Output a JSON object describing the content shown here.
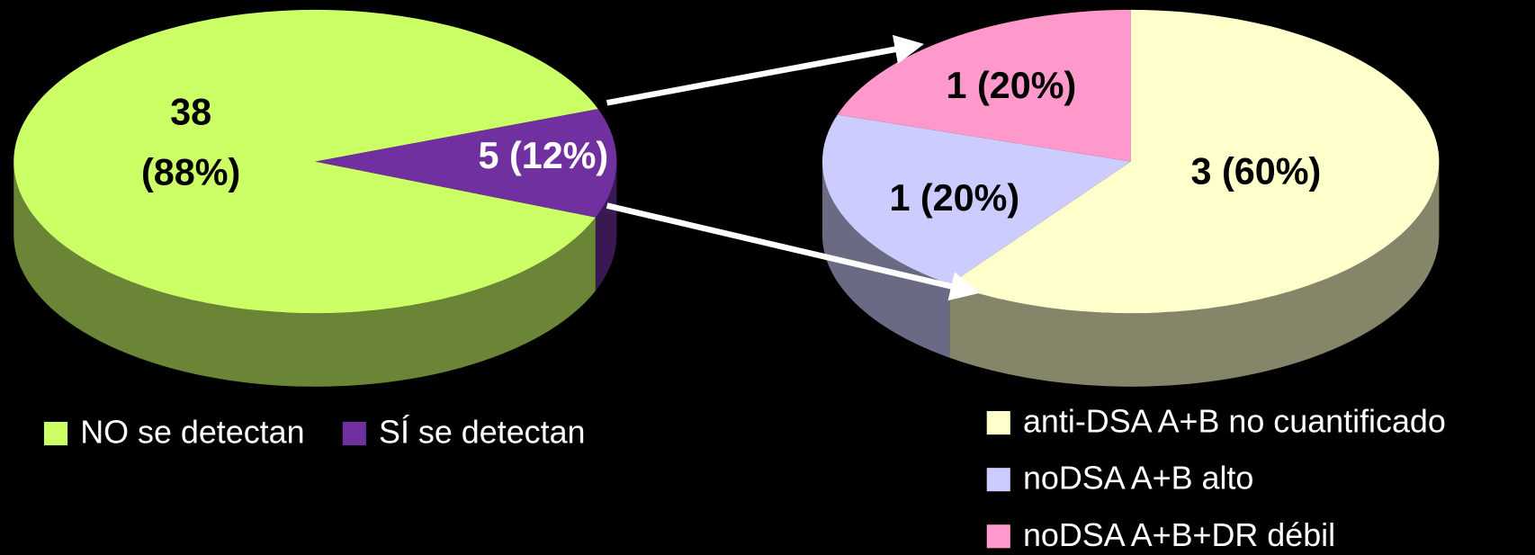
{
  "chart_data": [
    {
      "type": "pie",
      "categories": [
        "NO se detectan",
        "SÍ se detectan"
      ],
      "values": [
        38,
        5
      ],
      "value_labels": [
        [
          "38",
          "(88%)"
        ],
        [
          "5 (12%)"
        ]
      ],
      "colors": [
        "#ccff66",
        "#7030a0"
      ]
    },
    {
      "type": "pie",
      "categories": [
        "anti-DSA A+B no cuantificado",
        "noDSA A+B alto",
        "noDSA A+B+DR débil"
      ],
      "values": [
        3,
        1,
        1
      ],
      "value_labels": [
        [
          "3 (60%)"
        ],
        [
          "1 (20%)"
        ],
        [
          "1 (20%)"
        ]
      ],
      "colors": [
        "#ffffcc",
        "#ccccff",
        "#ff99cc"
      ]
    }
  ]
}
